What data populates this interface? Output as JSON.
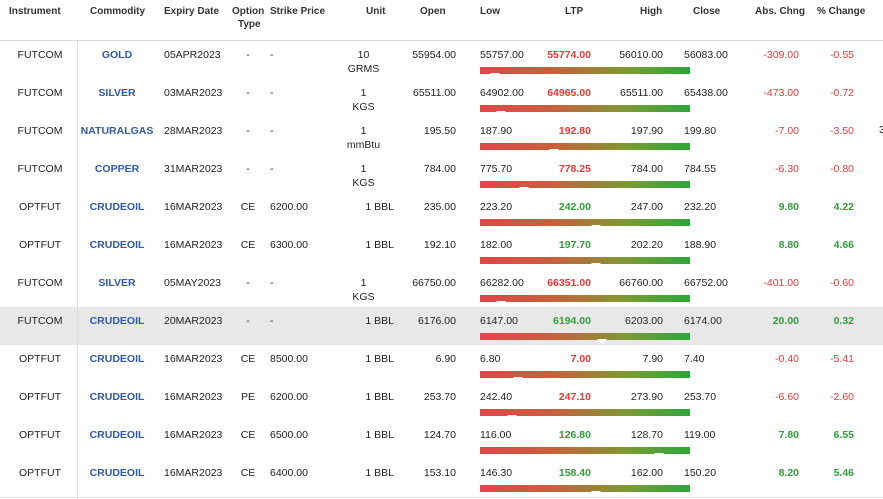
{
  "columns": {
    "instrument": "Instrument",
    "commodity": "Commodity",
    "expiry": "Expiry Date",
    "option_type_1": "Option",
    "option_type_2": "Type",
    "strike": "Strike Price",
    "unit": "Unit",
    "open": "Open",
    "low": "Low",
    "ltp": "LTP",
    "high": "High",
    "close": "Close",
    "abs_chng": "Abs. Chng",
    "pct_change": "% Change"
  },
  "colors": {
    "down": "#e53935",
    "up": "#2e9e3a",
    "commodity_link": "#2e5aa8",
    "bar_low": "#e0464a",
    "bar_high": "#2aa83a",
    "highlight_row": "#e8e8e8"
  },
  "rows": [
    {
      "instrument": "FUTCOM",
      "commodity": "GOLD",
      "expiry": "05APR2023",
      "option_type": "-",
      "strike": "-",
      "unit_1": "10",
      "unit_2": "GRMS",
      "open": "55954.00",
      "low": "55757.00",
      "ltp": "55774.00",
      "high": "56010.00",
      "close": "56083.00",
      "abs_chng": "-309.00",
      "pct_change": "-0.55",
      "direction": "down",
      "range_position": 0.07,
      "highlighted": false
    },
    {
      "instrument": "FUTCOM",
      "commodity": "SILVER",
      "expiry": "03MAR2023",
      "option_type": "-",
      "strike": "-",
      "unit_1": "1",
      "unit_2": "KGS",
      "open": "65511.00",
      "low": "64902.00",
      "ltp": "64965.00",
      "high": "65511.00",
      "close": "65438.00",
      "abs_chng": "-473.00",
      "pct_change": "-0.72",
      "direction": "down",
      "range_position": 0.1,
      "highlighted": false
    },
    {
      "instrument": "FUTCOM",
      "commodity": "NATURALGAS",
      "expiry": "28MAR2023",
      "option_type": "-",
      "strike": "-",
      "unit_1": "1",
      "unit_2": "mmBtu",
      "open": "195.50",
      "low": "187.90",
      "ltp": "192.80",
      "high": "197.90",
      "close": "199.80",
      "abs_chng": "-7.00",
      "pct_change": "-3.50",
      "direction": "down",
      "range_position": 0.35,
      "highlighted": false,
      "overflow_text": "3"
    },
    {
      "instrument": "FUTCOM",
      "commodity": "COPPER",
      "expiry": "31MAR2023",
      "option_type": "-",
      "strike": "-",
      "unit_1": "1",
      "unit_2": "KGS",
      "open": "784.00",
      "low": "775.70",
      "ltp": "778.25",
      "high": "784.00",
      "close": "784.55",
      "abs_chng": "-6.30",
      "pct_change": "-0.80",
      "direction": "down",
      "range_position": 0.21,
      "highlighted": false
    },
    {
      "instrument": "OPTFUT",
      "commodity": "CRUDEOIL",
      "expiry": "16MAR2023",
      "option_type": "CE",
      "strike": "6200.00",
      "unit_1": "1 BBL",
      "unit_2": "",
      "open": "235.00",
      "low": "223.20",
      "ltp": "242.00",
      "high": "247.00",
      "close": "232.20",
      "abs_chng": "9.80",
      "pct_change": "4.22",
      "direction": "up",
      "range_position": 0.55,
      "highlighted": false
    },
    {
      "instrument": "OPTFUT",
      "commodity": "CRUDEOIL",
      "expiry": "16MAR2023",
      "option_type": "CE",
      "strike": "6300.00",
      "unit_1": "1 BBL",
      "unit_2": "",
      "open": "192.10",
      "low": "182.00",
      "ltp": "197.70",
      "high": "202.20",
      "close": "188.90",
      "abs_chng": "8.80",
      "pct_change": "4.66",
      "direction": "up",
      "range_position": 0.55,
      "highlighted": false
    },
    {
      "instrument": "FUTCOM",
      "commodity": "SILVER",
      "expiry": "05MAY2023",
      "option_type": "-",
      "strike": "-",
      "unit_1": "1",
      "unit_2": "KGS",
      "open": "66750.00",
      "low": "66282.00",
      "ltp": "66351.00",
      "high": "66760.00",
      "close": "66752.00",
      "abs_chng": "-401.00",
      "pct_change": "-0.60",
      "direction": "down",
      "range_position": 0.1,
      "highlighted": false
    },
    {
      "instrument": "FUTCOM",
      "commodity": "CRUDEOIL",
      "expiry": "20MAR2023",
      "option_type": "-",
      "strike": "-",
      "unit_1": "1 BBL",
      "unit_2": "",
      "open": "6176.00",
      "low": "6147.00",
      "ltp": "6194.00",
      "high": "6203.00",
      "close": "6174.00",
      "abs_chng": "20.00",
      "pct_change": "0.32",
      "direction": "up",
      "range_position": 0.58,
      "highlighted": true
    },
    {
      "instrument": "OPTFUT",
      "commodity": "CRUDEOIL",
      "expiry": "16MAR2023",
      "option_type": "CE",
      "strike": "8500.00",
      "unit_1": "1 BBL",
      "unit_2": "",
      "open": "6.90",
      "low": "6.80",
      "ltp": "7.00",
      "high": "7.90",
      "close": "7.40",
      "abs_chng": "-0.40",
      "pct_change": "-5.41",
      "direction": "down",
      "range_position": 0.18,
      "highlighted": false
    },
    {
      "instrument": "OPTFUT",
      "commodity": "CRUDEOIL",
      "expiry": "16MAR2023",
      "option_type": "PE",
      "strike": "6200.00",
      "unit_1": "1 BBL",
      "unit_2": "",
      "open": "253.70",
      "low": "242.40",
      "ltp": "247.10",
      "high": "273.90",
      "close": "253.70",
      "abs_chng": "-6.60",
      "pct_change": "-2.60",
      "direction": "down",
      "range_position": 0.15,
      "highlighted": false
    },
    {
      "instrument": "OPTFUT",
      "commodity": "CRUDEOIL",
      "expiry": "16MAR2023",
      "option_type": "CE",
      "strike": "6500.00",
      "unit_1": "1 BBL",
      "unit_2": "",
      "open": "124.70",
      "low": "116.00",
      "ltp": "126.80",
      "high": "128.70",
      "close": "119.00",
      "abs_chng": "7.80",
      "pct_change": "6.55",
      "direction": "up",
      "range_position": 0.85,
      "highlighted": false
    },
    {
      "instrument": "OPTFUT",
      "commodity": "CRUDEOIL",
      "expiry": "16MAR2023",
      "option_type": "CE",
      "strike": "6400.00",
      "unit_1": "1 BBL",
      "unit_2": "",
      "open": "153.10",
      "low": "146.30",
      "ltp": "158.40",
      "high": "162.00",
      "close": "150.20",
      "abs_chng": "8.20",
      "pct_change": "5.46",
      "direction": "up",
      "range_position": 0.55,
      "highlighted": false
    }
  ]
}
